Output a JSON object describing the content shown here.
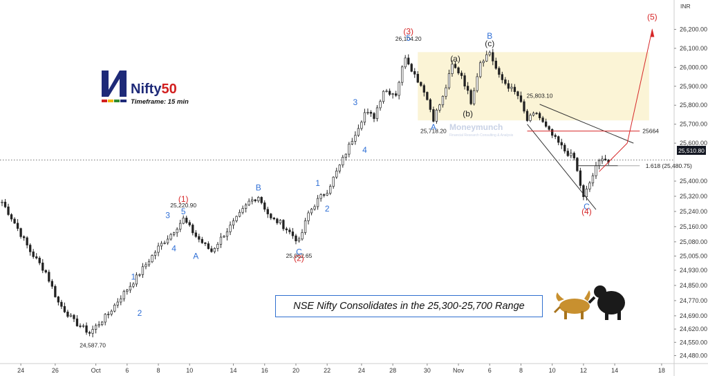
{
  "chart_data": {
    "type": "candlestick",
    "currency": "INR",
    "ylim": [
      24460,
      26260
    ],
    "y_ticks": [
      "26,200.00",
      "26,100.00",
      "26,000.00",
      "25,900.00",
      "25,800.00",
      "25,700.00",
      "25,600.00",
      "25,400.00",
      "25,320.00",
      "25,240.00",
      "25,160.00",
      "25,080.00",
      "25,005.00",
      "24,930.00",
      "24,850.00",
      "24,770.00",
      "24,690.00",
      "24,620.00",
      "24,550.00",
      "24,480.00"
    ],
    "x_ticks": [
      "24",
      "26",
      "Oct",
      "6",
      "8",
      "10",
      "14",
      "16",
      "20",
      "22",
      "24",
      "28",
      "30",
      "Nov",
      "6",
      "8",
      "10",
      "12",
      "14",
      "18"
    ],
    "last_price": "25,510.80",
    "price_path": [
      {
        "i": 0,
        "p": 25290
      },
      {
        "i": 4,
        "p": 25180
      },
      {
        "i": 9,
        "p": 25030
      },
      {
        "i": 14,
        "p": 24920
      },
      {
        "i": 18,
        "p": 24760
      },
      {
        "i": 23,
        "p": 24660
      },
      {
        "i": 28,
        "p": 24600
      },
      {
        "i": 34,
        "p": 24700
      },
      {
        "i": 38,
        "p": 24790
      },
      {
        "i": 42,
        "p": 24870
      },
      {
        "i": 46,
        "p": 24960
      },
      {
        "i": 50,
        "p": 25050
      },
      {
        "i": 54,
        "p": 25120
      },
      {
        "i": 58,
        "p": 25200
      },
      {
        "i": 62,
        "p": 25110
      },
      {
        "i": 65,
        "p": 25060
      },
      {
        "i": 67,
        "p": 25030
      },
      {
        "i": 71,
        "p": 25120
      },
      {
        "i": 75,
        "p": 25200
      },
      {
        "i": 79,
        "p": 25290
      },
      {
        "i": 82,
        "p": 25320
      },
      {
        "i": 86,
        "p": 25200
      },
      {
        "i": 89,
        "p": 25180
      },
      {
        "i": 92,
        "p": 25130
      },
      {
        "i": 95,
        "p": 25080
      },
      {
        "i": 98,
        "p": 25230
      },
      {
        "i": 101,
        "p": 25300
      },
      {
        "i": 104,
        "p": 25350
      },
      {
        "i": 108,
        "p": 25480
      },
      {
        "i": 112,
        "p": 25620
      },
      {
        "i": 116,
        "p": 25760
      },
      {
        "i": 119,
        "p": 25740
      },
      {
        "i": 122,
        "p": 25880
      },
      {
        "i": 126,
        "p": 25860
      },
      {
        "i": 129,
        "p": 26060
      },
      {
        "i": 132,
        "p": 25960
      },
      {
        "i": 135,
        "p": 25880
      },
      {
        "i": 138,
        "p": 25730
      },
      {
        "i": 141,
        "p": 25840
      },
      {
        "i": 144,
        "p": 26010
      },
      {
        "i": 147,
        "p": 25960
      },
      {
        "i": 150,
        "p": 25820
      },
      {
        "i": 153,
        "p": 26030
      },
      {
        "i": 156,
        "p": 26080
      },
      {
        "i": 159,
        "p": 25950
      },
      {
        "i": 162,
        "p": 25900
      },
      {
        "i": 165,
        "p": 25850
      },
      {
        "i": 168,
        "p": 25720
      },
      {
        "i": 171,
        "p": 25760
      },
      {
        "i": 174,
        "p": 25680
      },
      {
        "i": 177,
        "p": 25620
      },
      {
        "i": 180,
        "p": 25560
      },
      {
        "i": 183,
        "p": 25520
      },
      {
        "i": 186,
        "p": 25310
      },
      {
        "i": 188,
        "p": 25390
      },
      {
        "i": 190,
        "p": 25470
      },
      {
        "i": 192,
        "p": 25530
      },
      {
        "i": 194,
        "p": 25500
      }
    ],
    "annotations": {
      "price_labels": [
        {
          "text": "26,104.20",
          "x_idx": 130,
          "price": 26104,
          "pos": "above"
        },
        {
          "text": "25,220.90",
          "x_idx": 58,
          "price": 25225,
          "pos": "above"
        },
        {
          "text": "25,803.10",
          "x_idx": 172,
          "price": 25803,
          "pos": "above"
        },
        {
          "text": "25,718.20",
          "x_idx": 138,
          "price": 25718,
          "pos": "below"
        },
        {
          "text": "25,062.65",
          "x_idx": 95,
          "price": 25062,
          "pos": "below"
        },
        {
          "text": "24,587.70",
          "x_idx": 29,
          "price": 24590,
          "pos": "below"
        },
        {
          "text": "25664",
          "x_idx": 204,
          "price": 25664,
          "pos": "right"
        },
        {
          "text": "1.618 (25,480.75)",
          "x_idx": 205,
          "price": 25481,
          "pos": "right"
        }
      ],
      "wave_labels": [
        {
          "text": "(3)",
          "color": "#d62728",
          "x_idx": 130,
          "price": 26175
        },
        {
          "text": "5",
          "color": "#2f6fd6",
          "x_idx": 130,
          "price": 26140
        },
        {
          "text": "(1)",
          "color": "#d62728",
          "x_idx": 58,
          "price": 25290
        },
        {
          "text": "5",
          "color": "#2f6fd6",
          "x_idx": 58,
          "price": 25225
        },
        {
          "text": "3",
          "color": "#2f6fd6",
          "x_idx": 53,
          "price": 25205
        },
        {
          "text": "4",
          "color": "#2f6fd6",
          "x_idx": 55,
          "price": 25030
        },
        {
          "text": "A",
          "color": "#2f6fd6",
          "x_idx": 62,
          "price": 24990
        },
        {
          "text": "B",
          "color": "#2f6fd6",
          "x_idx": 82,
          "price": 25350
        },
        {
          "text": "C",
          "color": "#2f6fd6",
          "x_idx": 95,
          "price": 25012
        },
        {
          "text": "(2)",
          "color": "#d62728",
          "x_idx": 95,
          "price": 24980
        },
        {
          "text": "1",
          "color": "#2f6fd6",
          "x_idx": 101,
          "price": 25375
        },
        {
          "text": "2",
          "color": "#2f6fd6",
          "x_idx": 104,
          "price": 25240
        },
        {
          "text": "3",
          "color": "#2f6fd6",
          "x_idx": 113,
          "price": 25800
        },
        {
          "text": "4",
          "color": "#2f6fd6",
          "x_idx": 116,
          "price": 25550
        },
        {
          "text": "1",
          "color": "#2f6fd6",
          "x_idx": 42,
          "price": 24880
        },
        {
          "text": "2",
          "color": "#2f6fd6",
          "x_idx": 44,
          "price": 24690
        },
        {
          "text": "A",
          "color": "#2f6fd6",
          "x_idx": 138,
          "price": 25670
        },
        {
          "text": "(a)",
          "color": "#222222",
          "x_idx": 145,
          "price": 26030
        },
        {
          "text": "(b)",
          "color": "#222222",
          "x_idx": 149,
          "price": 25740
        },
        {
          "text": "B",
          "color": "#2f6fd6",
          "x_idx": 156,
          "price": 26150
        },
        {
          "text": "(c)",
          "color": "#222222",
          "x_idx": 156,
          "price": 26110
        },
        {
          "text": "C",
          "color": "#2f6fd6",
          "x_idx": 187,
          "price": 25250
        },
        {
          "text": "(4)",
          "color": "#d62728",
          "x_idx": 187,
          "price": 25225
        },
        {
          "text": "(5)",
          "color": "#d62728",
          "x_idx": 208,
          "price": 26250
        }
      ]
    },
    "colors": {
      "up": "#222222",
      "down": "#222222",
      "red": "#d62728",
      "blue": "#2f6fd6",
      "yellow_zone": "#fbf4d6",
      "grid": "#f0f0f0",
      "axis": "#333333"
    }
  },
  "branding": {
    "title_name": "Nifty",
    "title_num": "50",
    "timeframe": "Timeframe: 15 min",
    "watermark": "Moneymunch",
    "watermark_sub": "Financial Research Consulting & Analysis"
  },
  "headline": "NSE Nifty Consolidates in the 25,300-25,700 Range",
  "icons": {
    "bull": "bull-icon",
    "bear": "bear-icon",
    "logo": "nifty-logo-icon"
  }
}
